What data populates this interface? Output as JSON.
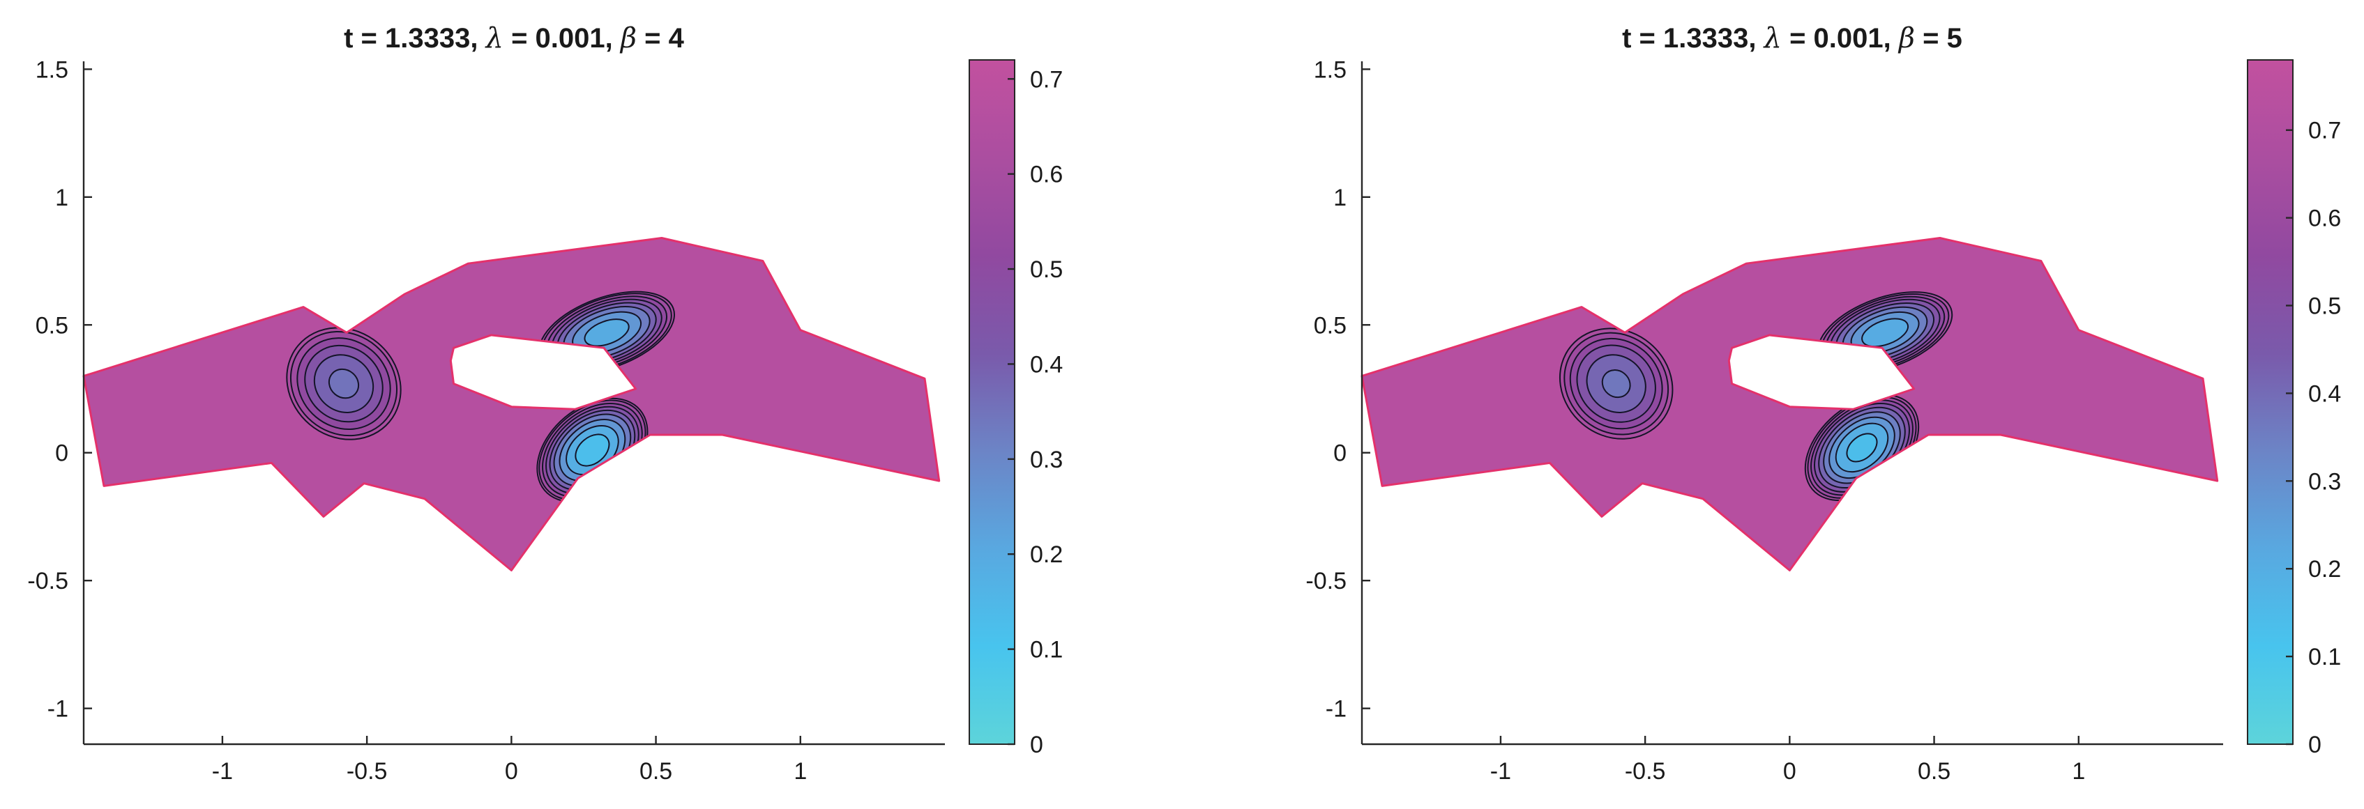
{
  "colors": {
    "colormap": [
      "#5dd4da",
      "#48c4ee",
      "#59a8e0",
      "#6c84c6",
      "#7a5aab",
      "#9149a0",
      "#ab4ea0",
      "#c2519f"
    ],
    "domain_edge": "#e4316b",
    "contour": "#141428",
    "axis": "#262626"
  },
  "chart_data": [
    {
      "type": "heatmap",
      "title_prefix": "t = 1.3333, ",
      "title_lambda_symbol": "λ",
      "title_mid": " = 0.001, ",
      "title_beta_symbol": "β",
      "title_suffix": " = 4",
      "xlim": [
        -1.48,
        1.5
      ],
      "ylim": [
        -1.14,
        1.52
      ],
      "xticks": [
        -1,
        -0.5,
        0,
        0.5,
        1
      ],
      "xtick_labels": [
        "-1",
        "-0.5",
        "0",
        "0.5",
        "1"
      ],
      "yticks": [
        -1,
        -0.5,
        0,
        0.5,
        1,
        1.5
      ],
      "ytick_labels": [
        "-1",
        "-0.5",
        "0",
        "0.5",
        "1",
        "1.5"
      ],
      "clim": [
        0,
        0.72
      ],
      "cticks": [
        0,
        0.1,
        0.2,
        0.3,
        0.4,
        0.5,
        0.6,
        0.7
      ],
      "ctick_labels": [
        "0",
        "0.1",
        "0.2",
        "0.3",
        "0.4",
        "0.5",
        "0.6",
        "0.7"
      ],
      "background_value": 0.66,
      "domain_outer": [
        [
          -1.48,
          0.3
        ],
        [
          -0.72,
          0.57
        ],
        [
          -0.57,
          0.47
        ],
        [
          -0.37,
          0.62
        ],
        [
          -0.15,
          0.74
        ],
        [
          0.52,
          0.84
        ],
        [
          0.87,
          0.75
        ],
        [
          1.0,
          0.48
        ],
        [
          1.43,
          0.29
        ],
        [
          1.48,
          -0.11
        ],
        [
          0.73,
          0.07
        ],
        [
          0.48,
          0.07
        ],
        [
          0.23,
          -0.1
        ],
        [
          0.0,
          -0.46
        ],
        [
          -0.3,
          -0.18
        ],
        [
          -0.51,
          -0.12
        ],
        [
          -0.65,
          -0.25
        ],
        [
          -0.83,
          -0.04
        ],
        [
          -1.41,
          -0.13
        ]
      ],
      "domain_hole": [
        [
          -0.2,
          0.41
        ],
        [
          -0.07,
          0.46
        ],
        [
          0.32,
          0.41
        ],
        [
          0.43,
          0.25
        ],
        [
          0.22,
          0.17
        ],
        [
          0.0,
          0.18
        ],
        [
          -0.2,
          0.27
        ],
        [
          -0.21,
          0.36
        ]
      ],
      "wells": [
        {
          "cx": -0.58,
          "cy": 0.27,
          "rx": 0.19,
          "ry": 0.24,
          "rot": -50,
          "min": 0.34
        },
        {
          "cx": 0.33,
          "cy": 0.47,
          "rx": 0.25,
          "ry": 0.14,
          "rot": -20,
          "min": 0.17
        },
        {
          "cx": 0.28,
          "cy": 0.01,
          "rx": 0.22,
          "ry": 0.17,
          "rot": -40,
          "min": 0.1
        }
      ],
      "contour_levels": [
        0.15,
        0.22,
        0.29,
        0.36,
        0.42,
        0.48,
        0.54,
        0.6,
        0.64
      ]
    },
    {
      "type": "heatmap",
      "title_prefix": "t = 1.3333, ",
      "title_lambda_symbol": "λ",
      "title_mid": " = 0.001, ",
      "title_beta_symbol": "β",
      "title_suffix": " = 5",
      "xlim": [
        -1.48,
        1.5
      ],
      "ylim": [
        -1.14,
        1.52
      ],
      "xticks": [
        -1,
        -0.5,
        0,
        0.5,
        1
      ],
      "xtick_labels": [
        "-1",
        "-0.5",
        "0",
        "0.5",
        "1"
      ],
      "yticks": [
        -1,
        -0.5,
        0,
        0.5,
        1,
        1.5
      ],
      "ytick_labels": [
        "-1",
        "-0.5",
        "0",
        "0.5",
        "1",
        "1.5"
      ],
      "clim": [
        0,
        0.78
      ],
      "cticks": [
        0,
        0.1,
        0.2,
        0.3,
        0.4,
        0.5,
        0.6,
        0.7
      ],
      "ctick_labels": [
        "0",
        "0.1",
        "0.2",
        "0.3",
        "0.4",
        "0.5",
        "0.6",
        "0.7"
      ],
      "background_value": 0.72,
      "domain_outer": [
        [
          -1.48,
          0.3
        ],
        [
          -0.72,
          0.57
        ],
        [
          -0.57,
          0.47
        ],
        [
          -0.37,
          0.62
        ],
        [
          -0.15,
          0.74
        ],
        [
          0.52,
          0.84
        ],
        [
          0.87,
          0.75
        ],
        [
          1.0,
          0.48
        ],
        [
          1.43,
          0.29
        ],
        [
          1.48,
          -0.11
        ],
        [
          0.73,
          0.07
        ],
        [
          0.48,
          0.07
        ],
        [
          0.23,
          -0.1
        ],
        [
          0.0,
          -0.46
        ],
        [
          -0.3,
          -0.18
        ],
        [
          -0.51,
          -0.12
        ],
        [
          -0.65,
          -0.25
        ],
        [
          -0.83,
          -0.04
        ],
        [
          -1.41,
          -0.13
        ]
      ],
      "domain_hole": [
        [
          -0.2,
          0.41
        ],
        [
          -0.07,
          0.46
        ],
        [
          0.32,
          0.41
        ],
        [
          0.43,
          0.25
        ],
        [
          0.22,
          0.17
        ],
        [
          0.0,
          0.18
        ],
        [
          -0.2,
          0.27
        ],
        [
          -0.21,
          0.36
        ]
      ],
      "wells": [
        {
          "cx": -0.6,
          "cy": 0.27,
          "rx": 0.19,
          "ry": 0.24,
          "rot": -50,
          "min": 0.36
        },
        {
          "cx": 0.33,
          "cy": 0.47,
          "rx": 0.25,
          "ry": 0.14,
          "rot": -20,
          "min": 0.18
        },
        {
          "cx": 0.25,
          "cy": 0.02,
          "rx": 0.23,
          "ry": 0.17,
          "rot": -40,
          "min": 0.12
        }
      ],
      "contour_levels": [
        0.16,
        0.24,
        0.31,
        0.38,
        0.45,
        0.52,
        0.58,
        0.64,
        0.69
      ]
    }
  ]
}
